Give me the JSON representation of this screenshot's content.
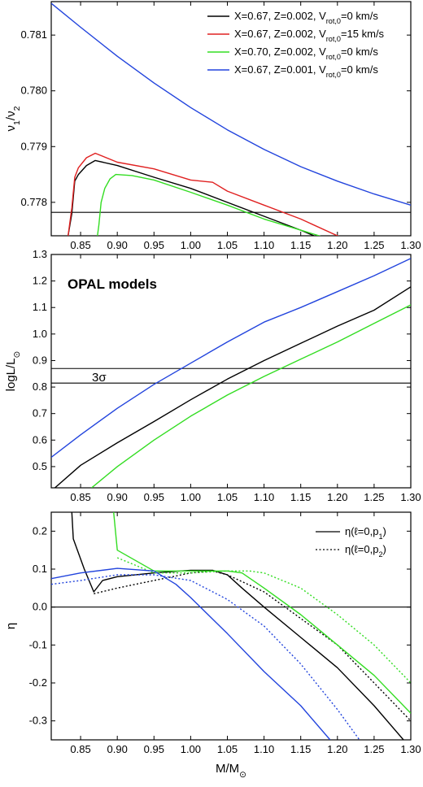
{
  "chart_data": [
    {
      "type": "line",
      "panel": "top",
      "ylabel": "ν1/ν2",
      "xlim": [
        0.81,
        1.3
      ],
      "ylim": [
        0.7774,
        0.7816
      ],
      "y_ticks": [
        "0.778",
        "0.779",
        "0.780",
        "0.781"
      ],
      "x_ticks": [
        "0.85",
        "0.90",
        "0.95",
        "1.00",
        "1.05",
        "1.10",
        "1.15",
        "1.20",
        "1.25",
        "1.30"
      ],
      "legend": {
        "position": "top-right",
        "entries": [
          {
            "color": "#000000",
            "text": "X=0.67, Z=0.002, V",
            "sub": "rot,0",
            "tail": "=0 km/s"
          },
          {
            "color": "#e02020",
            "text": "X=0.67, Z=0.002, V",
            "sub": "rot,0",
            "tail": "=15 km/s"
          },
          {
            "color": "#33dd22",
            "text": "X=0.70, Z=0.002, V",
            "sub": "rot,0",
            "tail": "=0 km/s"
          },
          {
            "color": "#2244dd",
            "text": "X=0.67, Z=0.001, V",
            "sub": "rot,0",
            "tail": "=0 km/s"
          }
        ]
      },
      "hlines": [
        0.77782
      ],
      "series": [
        {
          "color": "#000000",
          "style": "solid",
          "x": [
            0.833,
            0.838,
            0.842,
            0.847,
            0.858,
            0.87,
            0.9,
            0.95,
            1.0,
            1.05,
            1.1,
            1.15,
            1.2,
            1.25,
            1.3
          ],
          "y": [
            0.7774,
            0.7778,
            0.77838,
            0.7785,
            0.77866,
            0.77875,
            0.77866,
            0.77845,
            0.77825,
            0.778,
            0.77775,
            0.7775,
            0.77722,
            0.77695,
            0.77665
          ]
        },
        {
          "color": "#e02020",
          "style": "solid",
          "x": [
            0.833,
            0.838,
            0.842,
            0.847,
            0.858,
            0.87,
            0.9,
            0.95,
            1.0,
            1.03,
            1.05,
            1.1,
            1.15,
            1.2,
            1.25,
            1.3
          ],
          "y": [
            0.7774,
            0.7779,
            0.77845,
            0.77862,
            0.7788,
            0.77888,
            0.77872,
            0.7786,
            0.7784,
            0.77836,
            0.7782,
            0.77795,
            0.7777,
            0.7774,
            0.77715,
            0.77685
          ]
        },
        {
          "color": "#33dd22",
          "style": "solid",
          "x": [
            0.873,
            0.875,
            0.878,
            0.883,
            0.89,
            0.898,
            0.92,
            0.95,
            1.0,
            1.05,
            1.1,
            1.15,
            1.2,
            1.25,
            1.3
          ],
          "y": [
            0.7774,
            0.7776,
            0.778,
            0.77825,
            0.77842,
            0.7785,
            0.77848,
            0.7784,
            0.77818,
            0.77795,
            0.7777,
            0.7775,
            0.7773,
            0.7771,
            0.77685
          ]
        },
        {
          "color": "#2244dd",
          "style": "solid",
          "x": [
            0.81,
            0.85,
            0.9,
            0.95,
            1.0,
            1.05,
            1.1,
            1.15,
            1.2,
            1.25,
            1.3
          ],
          "y": [
            0.78157,
            0.78114,
            0.78062,
            0.78014,
            0.7797,
            0.7793,
            0.77895,
            0.77864,
            0.77838,
            0.77815,
            0.77795
          ]
        }
      ]
    },
    {
      "type": "line",
      "panel": "middle",
      "ylabel": "logL/L",
      "ylabel_sub": "⊙",
      "xlim": [
        0.81,
        1.3
      ],
      "ylim": [
        0.42,
        1.3
      ],
      "y_ticks": [
        "0.5",
        "0.6",
        "0.7",
        "0.8",
        "0.9",
        "1.0",
        "1.1",
        "1.2",
        "1.3"
      ],
      "x_ticks": [
        "0.85",
        "0.90",
        "0.95",
        "1.00",
        "1.05",
        "1.10",
        "1.15",
        "1.20",
        "1.25",
        "1.30"
      ],
      "annotation_title": "OPAL models",
      "annotation_sigma": "3σ",
      "hlines": [
        0.87,
        0.815
      ],
      "series": [
        {
          "color": "#000000",
          "style": "solid",
          "x": [
            0.815,
            0.85,
            0.9,
            0.95,
            1.0,
            1.05,
            1.1,
            1.15,
            1.2,
            1.25,
            1.3
          ],
          "y": [
            0.42,
            0.505,
            0.59,
            0.67,
            0.752,
            0.83,
            0.9,
            0.965,
            1.03,
            1.09,
            1.178
          ]
        },
        {
          "color": "#33dd22",
          "style": "solid",
          "x": [
            0.865,
            0.9,
            0.95,
            1.0,
            1.05,
            1.1,
            1.15,
            1.2,
            1.25,
            1.3
          ],
          "y": [
            0.42,
            0.5,
            0.6,
            0.69,
            0.77,
            0.84,
            0.905,
            0.97,
            1.04,
            1.11
          ]
        },
        {
          "color": "#2244dd",
          "style": "solid",
          "x": [
            0.81,
            0.85,
            0.9,
            0.95,
            1.0,
            1.05,
            1.1,
            1.15,
            1.2,
            1.25,
            1.3
          ],
          "y": [
            0.535,
            0.62,
            0.72,
            0.81,
            0.89,
            0.97,
            1.045,
            1.1,
            1.16,
            1.22,
            1.285
          ]
        }
      ]
    },
    {
      "type": "line",
      "panel": "bottom",
      "ylabel": "η",
      "xlabel": "M/M",
      "xlabel_sub": "⊙",
      "xlim": [
        0.81,
        1.3
      ],
      "ylim": [
        -0.35,
        0.25
      ],
      "y_ticks": [
        "-0.3",
        "-0.2",
        "-0.1",
        "0.0",
        "0.1",
        "0.2"
      ],
      "x_ticks": [
        "0.85",
        "0.90",
        "0.95",
        "1.00",
        "1.05",
        "1.10",
        "1.15",
        "1.20",
        "1.25",
        "1.30"
      ],
      "hlines": [
        0.0
      ],
      "legend": {
        "position": "top-right",
        "entries": [
          {
            "style": "solid",
            "text": "η(ℓ=0,p",
            "sub": "1",
            "tail": ")"
          },
          {
            "style": "dotted",
            "text": "η(ℓ=0,p",
            "sub": "2",
            "tail": ")"
          }
        ]
      },
      "series": [
        {
          "color": "#000000",
          "style": "solid",
          "x": [
            0.838,
            0.84,
            0.855,
            0.868,
            0.88,
            0.9,
            0.95,
            1.0,
            1.03,
            1.05,
            1.07,
            1.1,
            1.15,
            1.2,
            1.25,
            1.29
          ],
          "y": [
            0.25,
            0.18,
            0.1,
            0.04,
            0.07,
            0.08,
            0.09,
            0.097,
            0.097,
            0.085,
            0.05,
            0.0,
            -0.08,
            -0.16,
            -0.26,
            -0.35
          ]
        },
        {
          "color": "#000000",
          "style": "dotted",
          "x": [
            0.868,
            0.9,
            0.95,
            1.0,
            1.03,
            1.05,
            1.1,
            1.15,
            1.2,
            1.25,
            1.3
          ],
          "y": [
            0.035,
            0.05,
            0.07,
            0.09,
            0.095,
            0.085,
            0.04,
            -0.03,
            -0.1,
            -0.2,
            -0.3
          ]
        },
        {
          "color": "#33dd22",
          "style": "solid",
          "x": [
            0.895,
            0.9,
            0.95,
            1.0,
            1.05,
            1.07,
            1.1,
            1.15,
            1.2,
            1.25,
            1.3
          ],
          "y": [
            0.25,
            0.15,
            0.095,
            0.095,
            0.095,
            0.09,
            0.05,
            -0.02,
            -0.1,
            -0.18,
            -0.28
          ]
        },
        {
          "color": "#33dd22",
          "style": "dotted",
          "x": [
            0.9,
            0.95,
            1.0,
            1.05,
            1.08,
            1.1,
            1.15,
            1.2,
            1.25,
            1.3
          ],
          "y": [
            0.13,
            0.09,
            0.09,
            0.095,
            0.095,
            0.09,
            0.05,
            -0.02,
            -0.1,
            -0.2
          ]
        },
        {
          "color": "#2244dd",
          "style": "solid",
          "x": [
            0.81,
            0.85,
            0.9,
            0.95,
            0.98,
            1.0,
            1.05,
            1.1,
            1.15,
            1.19
          ],
          "y": [
            0.075,
            0.09,
            0.102,
            0.095,
            0.06,
            0.025,
            -0.07,
            -0.17,
            -0.26,
            -0.35
          ]
        },
        {
          "color": "#2244dd",
          "style": "dotted",
          "x": [
            0.81,
            0.85,
            0.9,
            0.95,
            1.0,
            1.05,
            1.1,
            1.15,
            1.2,
            1.23
          ],
          "y": [
            0.06,
            0.07,
            0.085,
            0.085,
            0.07,
            0.02,
            -0.05,
            -0.15,
            -0.27,
            -0.35
          ]
        }
      ]
    }
  ]
}
